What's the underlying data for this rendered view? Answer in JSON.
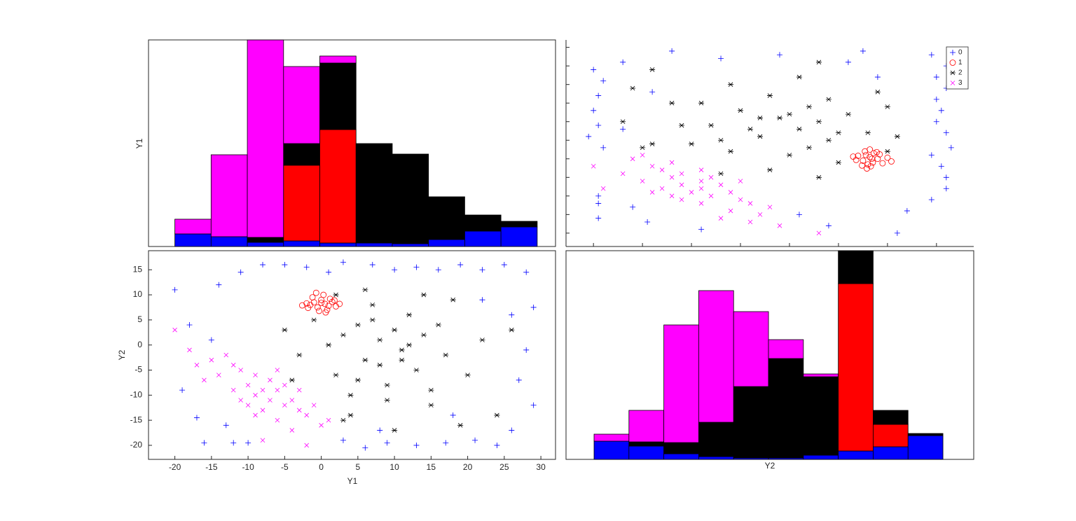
{
  "chart_data": [
    {
      "type": "histogram",
      "ylabel": "Y1",
      "bins": [
        -20,
        -15.05,
        -10.1,
        -5.15,
        -0.2,
        4.75,
        9.7,
        14.65,
        19.6,
        24.55,
        29.5
      ],
      "ylim": [
        0,
        295
      ],
      "series": [
        {
          "color": "#0000ff",
          "values": [
            18,
            14,
            6,
            8,
            5,
            5,
            4,
            10,
            22,
            28
          ]
        },
        {
          "color": "#ff0000",
          "values": [
            0,
            0,
            0,
            108,
            162,
            0,
            0,
            0,
            0,
            0
          ]
        },
        {
          "color": "#000000",
          "values": [
            0,
            0,
            7,
            31,
            95,
            142,
            128,
            61,
            23,
            8
          ]
        },
        {
          "color": "#ff00ff",
          "values": [
            21,
            117,
            282,
            110,
            10,
            0,
            0,
            0,
            0,
            0
          ]
        }
      ]
    },
    {
      "type": "scatter",
      "xlabel": "Y1",
      "ylabel": "Y2",
      "xlim": [
        -23.6,
        32
      ],
      "ylim": [
        -22.8,
        18.8
      ],
      "xticks": [
        -20,
        -15,
        -10,
        -5,
        0,
        5,
        10,
        15,
        20,
        25,
        30
      ],
      "yticks": [
        -20,
        -15,
        -10,
        -5,
        0,
        5,
        10,
        15
      ],
      "series": [
        {
          "name": "0",
          "color": "#0000ff",
          "marker": "+",
          "x": [
            -20,
            -19,
            -17,
            -16,
            -14,
            -12,
            -10,
            -11,
            -8,
            -5,
            -2,
            1,
            3,
            7,
            10,
            13,
            16,
            19,
            22,
            25,
            28,
            29,
            26,
            28,
            27,
            29,
            26,
            24,
            21,
            17,
            13,
            9,
            6,
            3,
            -15,
            -18,
            22,
            18,
            -13,
            8
          ],
          "y": [
            11,
            -9,
            -14.5,
            -19.5,
            12,
            -19.5,
            -19.5,
            14.5,
            16,
            16,
            15.5,
            14.5,
            16.5,
            16,
            15,
            15.5,
            15,
            16,
            15,
            16,
            14.5,
            7.5,
            6,
            -1,
            -7,
            -12,
            -17,
            -20,
            -19,
            -19.5,
            -20,
            -19.5,
            -20.5,
            -19,
            1,
            4,
            9,
            -14,
            -16,
            -17
          ]
        },
        {
          "name": "1",
          "color": "#ff0000",
          "marker": "o",
          "x": [
            -1.5,
            -1,
            -0.5,
            0,
            0.5,
            1,
            1.5,
            2,
            -2,
            -1.2,
            0.3,
            1.2,
            -0.3,
            0.8,
            -1.8,
            1.8,
            0,
            -0.7,
            0.6,
            2.5,
            -2.6
          ],
          "y": [
            8,
            8.5,
            7.5,
            9,
            8.2,
            7.8,
            8.6,
            7.7,
            8.3,
            9.5,
            10,
            9.2,
            6.8,
            7,
            7.4,
            8.9,
            8.4,
            10.4,
            6.5,
            8.2,
            7.9
          ]
        },
        {
          "name": "2",
          "color": "#000000",
          "marker": "*",
          "x": [
            -5,
            -3,
            -1,
            1,
            2,
            3,
            4,
            5,
            6,
            7,
            8,
            9,
            10,
            11,
            12,
            13,
            14,
            15,
            16,
            17,
            18,
            20,
            22,
            24,
            26,
            2,
            4,
            6,
            8,
            10,
            12,
            14,
            5,
            7,
            9,
            11,
            3,
            15,
            19,
            -4
          ],
          "y": [
            3,
            -2,
            5,
            0,
            -6,
            2,
            -10,
            4,
            -3,
            8,
            1,
            -8,
            3,
            -1,
            6,
            -5,
            2,
            -12,
            4,
            -2,
            9,
            -6,
            1,
            -14,
            3,
            10,
            -14,
            11,
            -4,
            -17,
            0,
            10,
            -7,
            5,
            -11,
            -3,
            -15,
            -9,
            -16,
            -7
          ]
        },
        {
          "name": "3",
          "color": "#ff00ff",
          "marker": "x",
          "x": [
            -20,
            -18,
            -17,
            -15,
            -14,
            -13,
            -12,
            -11,
            -10,
            -10,
            -9,
            -9,
            -8,
            -8,
            -7,
            -7,
            -6,
            -6,
            -5,
            -5,
            -4,
            -4,
            -3,
            -3,
            -2,
            -2,
            -1,
            0,
            1,
            -16,
            -12,
            -8,
            -6,
            -9,
            -11
          ],
          "y": [
            3,
            -1,
            -4,
            -3,
            -6,
            -2,
            -9,
            -5,
            -8,
            -12,
            -6,
            -10,
            -13,
            -9,
            -7,
            -11,
            -15,
            -9,
            -12,
            -8,
            -17,
            -11,
            -13,
            -9,
            -20,
            -14,
            -12,
            -16,
            -15,
            -7,
            -4,
            -19,
            -5,
            -14,
            -11
          ]
        }
      ]
    },
    {
      "type": "histogram",
      "xlabel": "Y2",
      "bins": [
        -19.94,
        -16.38,
        -12.82,
        -9.26,
        -5.7,
        -2.14,
        1.42,
        4.98,
        8.54,
        12.1,
        15.66
      ],
      "ylim": [
        0,
        298
      ],
      "series": [
        {
          "color": "#0000ff",
          "values": [
            26,
            19,
            8,
            4,
            2,
            2,
            6,
            12,
            18,
            34
          ]
        },
        {
          "color": "#ff0000",
          "values": [
            0,
            0,
            0,
            0,
            0,
            0,
            0,
            239,
            32,
            0
          ]
        },
        {
          "color": "#000000",
          "values": [
            0,
            6,
            16,
            49,
            102,
            142,
            112,
            47,
            20,
            3
          ]
        },
        {
          "color": "#ff00ff",
          "values": [
            10,
            45,
            168,
            188,
            107,
            27,
            4,
            0,
            0,
            0
          ]
        }
      ]
    }
  ]
}
